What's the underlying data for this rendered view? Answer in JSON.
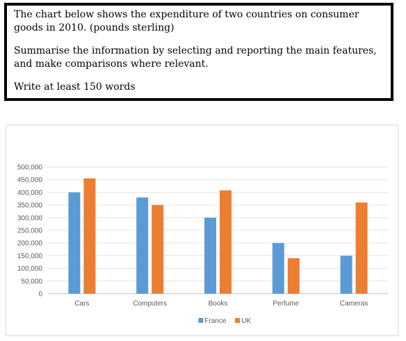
{
  "task": {
    "line1": "The chart below shows the expenditure of two countries on consumer goods in 2010. (pounds sterling)",
    "line2": "Summarise the information by selecting and reporting the main features, and make comparisons where relevant.",
    "line3": "Write at least 150 words"
  },
  "chart_data": {
    "type": "bar",
    "title": "",
    "xlabel": "",
    "ylabel": "",
    "categories": [
      "Cars",
      "Computers",
      "Books",
      "Perfume",
      "Cameras"
    ],
    "series": [
      {
        "name": "France",
        "color": "#5b9bd5",
        "values": [
          400000,
          380000,
          300000,
          200000,
          150000
        ]
      },
      {
        "name": "UK",
        "color": "#ed7d31",
        "values": [
          455000,
          350000,
          408000,
          140000,
          360000
        ]
      }
    ],
    "ylim": [
      0,
      500000
    ],
    "yticks": [
      "0",
      "50,000",
      "100,000",
      "150,000",
      "200,000",
      "250,000",
      "300,000",
      "350,000",
      "400,000",
      "450,000",
      "500,000"
    ],
    "grid": true,
    "legend_position": "bottom"
  }
}
